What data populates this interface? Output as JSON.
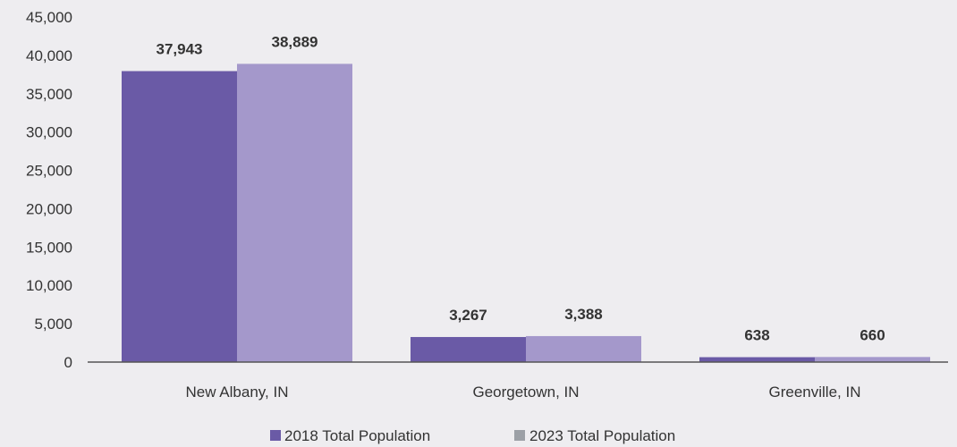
{
  "chart_data": {
    "type": "bar",
    "categories": [
      "New Albany, IN",
      "Georgetown, IN",
      "Greenville, IN"
    ],
    "series": [
      {
        "name": "2018 Total Population",
        "values": [
          37943,
          3267,
          638
        ],
        "labels": [
          "37,943",
          "3,267",
          "638"
        ],
        "color": "#6a5aa6"
      },
      {
        "name": "2023 Total Population",
        "values": [
          38889,
          3388,
          660
        ],
        "labels": [
          "38,889",
          "3,388",
          "660"
        ],
        "color": "#a498cb"
      }
    ],
    "ylim": [
      0,
      45000
    ],
    "yticks": [
      0,
      5000,
      10000,
      15000,
      20000,
      25000,
      30000,
      35000,
      40000,
      45000
    ],
    "ytick_labels": [
      "0",
      "5,000",
      "10,000",
      "15,000",
      "20,000",
      "25,000",
      "30,000",
      "35,000",
      "40,000",
      "45,000"
    ],
    "grid": false,
    "legend_position": "bottom",
    "legend_marker_colors": [
      "#6a5aa6",
      "#9ca0a6"
    ],
    "axis_color": "#555555"
  }
}
